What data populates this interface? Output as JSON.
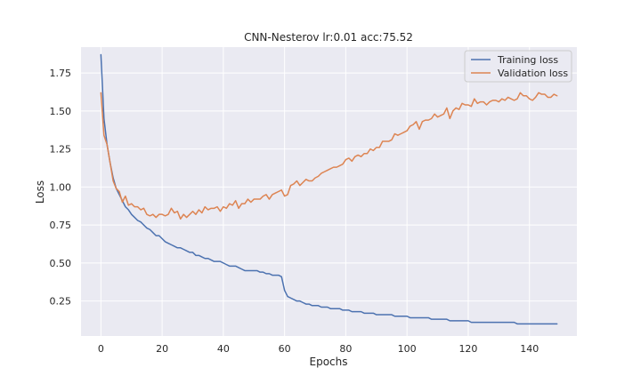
{
  "chart_data": {
    "type": "line",
    "title": "CNN-Nesterov lr:0.01 acc:75.52",
    "xlabel": "Epochs",
    "ylabel": "Loss",
    "xlim": [
      -6.5,
      155.5
    ],
    "ylim": [
      0.02,
      1.92
    ],
    "xticks": [
      0,
      20,
      40,
      60,
      80,
      100,
      120,
      140
    ],
    "yticks": [
      0.25,
      0.5,
      0.75,
      1.0,
      1.25,
      1.5,
      1.75
    ],
    "ytick_labels": [
      "0.25",
      "0.50",
      "0.75",
      "1.00",
      "1.25",
      "1.50",
      "1.75"
    ],
    "grid": true,
    "legend_position": "top-right",
    "series": [
      {
        "name": "Training loss",
        "color": "#4c72b0",
        "x": [
          0,
          1,
          2,
          3,
          4,
          5,
          6,
          7,
          8,
          9,
          10,
          11,
          12,
          13,
          14,
          15,
          16,
          17,
          18,
          19,
          20,
          21,
          22,
          23,
          24,
          25,
          26,
          27,
          28,
          29,
          30,
          31,
          32,
          33,
          34,
          35,
          36,
          37,
          38,
          39,
          40,
          41,
          42,
          43,
          44,
          45,
          46,
          47,
          48,
          49,
          50,
          51,
          52,
          53,
          54,
          55,
          56,
          57,
          58,
          59,
          60,
          61,
          62,
          63,
          64,
          65,
          66,
          67,
          68,
          69,
          70,
          71,
          72,
          73,
          74,
          75,
          76,
          77,
          78,
          79,
          80,
          81,
          82,
          83,
          84,
          85,
          86,
          87,
          88,
          89,
          90,
          91,
          92,
          93,
          94,
          95,
          96,
          97,
          98,
          99,
          100,
          101,
          102,
          103,
          104,
          105,
          106,
          107,
          108,
          109,
          110,
          111,
          112,
          113,
          114,
          115,
          116,
          117,
          118,
          119,
          120,
          121,
          122,
          123,
          124,
          125,
          126,
          127,
          128,
          129,
          130,
          131,
          132,
          133,
          134,
          135,
          136,
          137,
          138,
          139,
          140,
          141,
          142,
          143,
          144,
          145,
          146,
          147,
          148,
          149
        ],
        "values": [
          1.87,
          1.45,
          1.28,
          1.16,
          1.06,
          0.99,
          0.95,
          0.91,
          0.87,
          0.85,
          0.82,
          0.8,
          0.78,
          0.77,
          0.75,
          0.73,
          0.72,
          0.7,
          0.68,
          0.68,
          0.66,
          0.64,
          0.63,
          0.62,
          0.61,
          0.6,
          0.6,
          0.59,
          0.58,
          0.57,
          0.57,
          0.55,
          0.55,
          0.54,
          0.53,
          0.53,
          0.52,
          0.51,
          0.51,
          0.51,
          0.5,
          0.49,
          0.48,
          0.48,
          0.48,
          0.47,
          0.46,
          0.45,
          0.45,
          0.45,
          0.45,
          0.45,
          0.44,
          0.44,
          0.43,
          0.43,
          0.42,
          0.42,
          0.42,
          0.41,
          0.32,
          0.28,
          0.27,
          0.26,
          0.25,
          0.25,
          0.24,
          0.23,
          0.23,
          0.22,
          0.22,
          0.22,
          0.21,
          0.21,
          0.21,
          0.2,
          0.2,
          0.2,
          0.2,
          0.19,
          0.19,
          0.19,
          0.18,
          0.18,
          0.18,
          0.18,
          0.17,
          0.17,
          0.17,
          0.17,
          0.16,
          0.16,
          0.16,
          0.16,
          0.16,
          0.16,
          0.15,
          0.15,
          0.15,
          0.15,
          0.15,
          0.14,
          0.14,
          0.14,
          0.14,
          0.14,
          0.14,
          0.14,
          0.13,
          0.13,
          0.13,
          0.13,
          0.13,
          0.13,
          0.12,
          0.12,
          0.12,
          0.12,
          0.12,
          0.12,
          0.12,
          0.11,
          0.11,
          0.11,
          0.11,
          0.11,
          0.11,
          0.11,
          0.11,
          0.11,
          0.11,
          0.11,
          0.11,
          0.11,
          0.11,
          0.11,
          0.1,
          0.1,
          0.1,
          0.1,
          0.1,
          0.1,
          0.1,
          0.1,
          0.1,
          0.1,
          0.1,
          0.1,
          0.1,
          0.1
        ]
      },
      {
        "name": "Validation loss",
        "color": "#dd8452",
        "x": [
          0,
          1,
          2,
          3,
          4,
          5,
          6,
          7,
          8,
          9,
          10,
          11,
          12,
          13,
          14,
          15,
          16,
          17,
          18,
          19,
          20,
          21,
          22,
          23,
          24,
          25,
          26,
          27,
          28,
          29,
          30,
          31,
          32,
          33,
          34,
          35,
          36,
          37,
          38,
          39,
          40,
          41,
          42,
          43,
          44,
          45,
          46,
          47,
          48,
          49,
          50,
          51,
          52,
          53,
          54,
          55,
          56,
          57,
          58,
          59,
          60,
          61,
          62,
          63,
          64,
          65,
          66,
          67,
          68,
          69,
          70,
          71,
          72,
          73,
          74,
          75,
          76,
          77,
          78,
          79,
          80,
          81,
          82,
          83,
          84,
          85,
          86,
          87,
          88,
          89,
          90,
          91,
          92,
          93,
          94,
          95,
          96,
          97,
          98,
          99,
          100,
          101,
          102,
          103,
          104,
          105,
          106,
          107,
          108,
          109,
          110,
          111,
          112,
          113,
          114,
          115,
          116,
          117,
          118,
          119,
          120,
          121,
          122,
          123,
          124,
          125,
          126,
          127,
          128,
          129,
          130,
          131,
          132,
          133,
          134,
          135,
          136,
          137,
          138,
          139,
          140,
          141,
          142,
          143,
          144,
          145,
          146,
          147,
          148,
          149
        ],
        "values": [
          1.62,
          1.34,
          1.28,
          1.16,
          1.04,
          0.99,
          0.97,
          0.9,
          0.94,
          0.88,
          0.89,
          0.87,
          0.87,
          0.85,
          0.86,
          0.82,
          0.81,
          0.82,
          0.8,
          0.82,
          0.82,
          0.81,
          0.82,
          0.86,
          0.83,
          0.84,
          0.79,
          0.82,
          0.8,
          0.82,
          0.84,
          0.82,
          0.85,
          0.83,
          0.87,
          0.85,
          0.86,
          0.86,
          0.87,
          0.84,
          0.87,
          0.86,
          0.89,
          0.88,
          0.91,
          0.86,
          0.89,
          0.89,
          0.92,
          0.9,
          0.92,
          0.92,
          0.92,
          0.94,
          0.95,
          0.92,
          0.95,
          0.96,
          0.97,
          0.98,
          0.94,
          0.95,
          1.01,
          1.02,
          1.04,
          1.01,
          1.03,
          1.05,
          1.04,
          1.04,
          1.06,
          1.07,
          1.09,
          1.1,
          1.11,
          1.12,
          1.13,
          1.13,
          1.14,
          1.15,
          1.18,
          1.19,
          1.17,
          1.2,
          1.21,
          1.2,
          1.22,
          1.22,
          1.25,
          1.24,
          1.26,
          1.26,
          1.3,
          1.3,
          1.3,
          1.31,
          1.35,
          1.34,
          1.35,
          1.36,
          1.37,
          1.4,
          1.41,
          1.43,
          1.38,
          1.43,
          1.44,
          1.44,
          1.45,
          1.48,
          1.46,
          1.47,
          1.48,
          1.52,
          1.45,
          1.5,
          1.52,
          1.51,
          1.55,
          1.54,
          1.54,
          1.53,
          1.58,
          1.55,
          1.56,
          1.56,
          1.54,
          1.56,
          1.57,
          1.57,
          1.56,
          1.58,
          1.57,
          1.59,
          1.58,
          1.57,
          1.58,
          1.62,
          1.6,
          1.6,
          1.58,
          1.57,
          1.59,
          1.62,
          1.61,
          1.61,
          1.59,
          1.59,
          1.61,
          1.6
        ]
      }
    ]
  }
}
